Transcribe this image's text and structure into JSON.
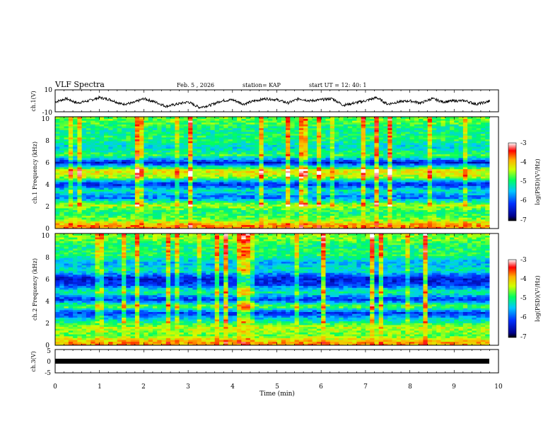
{
  "header": {
    "title": "VLF Spectra",
    "date": "Feb. 5 , 2026",
    "station": "station= KAP",
    "start": "start UT = 12: 40: 1"
  },
  "chart_data": [
    {
      "type": "line",
      "panel": "ch1-waveform",
      "ylabel": "ch.1(V)",
      "ylim": [
        -10,
        10
      ],
      "yticks": [
        "10",
        "-10"
      ],
      "xlim": [
        0,
        10
      ],
      "series": [
        {
          "name": "ch.1",
          "x": [
            0,
            0.25,
            0.5,
            0.75,
            1.0,
            1.25,
            1.5,
            1.75,
            2.0,
            2.25,
            2.5,
            2.75,
            3.0,
            3.25,
            3.5,
            3.75,
            4.0,
            4.25,
            4.5,
            4.75,
            5.0,
            5.25,
            5.5,
            5.75,
            6.0,
            6.25,
            6.5,
            6.75,
            7.0,
            7.25,
            7.5,
            7.75,
            8.0,
            8.25,
            8.5,
            8.75,
            9.0,
            9.25,
            9.5,
            9.75,
            9.8
          ],
          "values": [
            -1,
            2,
            -2,
            0,
            3,
            1,
            -3,
            -2,
            2,
            -1,
            -5,
            -3,
            -1,
            -6,
            -4,
            0,
            1,
            -3,
            0,
            2,
            1,
            -2,
            2,
            0,
            1,
            2,
            -4,
            -2,
            0,
            3,
            -3,
            -1,
            0,
            -2,
            2,
            -1,
            0,
            0,
            -3,
            -1,
            0
          ]
        }
      ]
    },
    {
      "type": "heatmap",
      "panel": "ch1-spectrogram",
      "ylabel": "ch.1 Frequency (kHz)",
      "ylim": [
        0,
        10
      ],
      "yticks": [
        "0",
        "2",
        "4",
        "6",
        "8",
        "10"
      ],
      "xlim": [
        0,
        9.8
      ],
      "colorbar": {
        "label": "log(PSD)(V²/Hz)",
        "range": [
          -7,
          -3
        ],
        "ticks": [
          "-3",
          "-4",
          "-5",
          "-6",
          "-7"
        ]
      },
      "band_levels_kHz": [
        {
          "f": 0.3,
          "level": -3.8
        },
        {
          "f": 0.8,
          "level": -4.6
        },
        {
          "f": 1.5,
          "level": -5.0
        },
        {
          "f": 2.1,
          "level": -4.4
        },
        {
          "f": 2.8,
          "level": -5.9
        },
        {
          "f": 3.4,
          "level": -5.2
        },
        {
          "f": 4.0,
          "level": -6.3
        },
        {
          "f": 4.6,
          "level": -4.5
        },
        {
          "f": 5.2,
          "level": -4.1
        },
        {
          "f": 5.9,
          "level": -6.4
        },
        {
          "f": 6.6,
          "level": -4.8
        },
        {
          "f": 7.3,
          "level": -5.4
        },
        {
          "f": 8.0,
          "level": -4.9
        },
        {
          "f": 8.8,
          "level": -5.1
        },
        {
          "f": 9.6,
          "level": -4.7
        }
      ]
    },
    {
      "type": "heatmap",
      "panel": "ch2-spectrogram",
      "ylabel": "ch.2 Frequency (kHz)",
      "ylim": [
        0,
        10
      ],
      "yticks": [
        "0",
        "2",
        "4",
        "6",
        "8",
        "10"
      ],
      "xlim": [
        0,
        9.8
      ],
      "colorbar": {
        "label": "log(PSD)(V²/Hz)",
        "range": [
          -7,
          -3
        ],
        "ticks": [
          "-3",
          "-4",
          "-5",
          "-6",
          "-7"
        ]
      },
      "band_levels_kHz": [
        {
          "f": 0.3,
          "level": -3.9
        },
        {
          "f": 0.9,
          "level": -4.7
        },
        {
          "f": 1.6,
          "level": -4.4
        },
        {
          "f": 2.3,
          "level": -5.3
        },
        {
          "f": 2.9,
          "level": -6.2
        },
        {
          "f": 3.5,
          "level": -4.6
        },
        {
          "f": 4.1,
          "level": -6.2
        },
        {
          "f": 4.8,
          "level": -5.0
        },
        {
          "f": 5.4,
          "level": -6.1
        },
        {
          "f": 6.0,
          "level": -6.4
        },
        {
          "f": 6.7,
          "level": -5.2
        },
        {
          "f": 7.4,
          "level": -5.6
        },
        {
          "f": 8.1,
          "level": -4.9
        },
        {
          "f": 8.9,
          "level": -5.0
        },
        {
          "f": 9.6,
          "level": -4.6
        }
      ]
    },
    {
      "type": "line",
      "panel": "ch3-waveform",
      "ylabel": "ch.3(V)",
      "ylim": [
        -5,
        5
      ],
      "yticks": [
        "5",
        "0",
        "-5"
      ],
      "xlim": [
        0,
        10
      ],
      "xlabel": "Time (min)",
      "xticks": [
        "0",
        "1",
        "2",
        "3",
        "4",
        "5",
        "6",
        "7",
        "8",
        "9",
        "10"
      ],
      "series": [
        {
          "name": "ch.3",
          "x": [
            0,
            9.8
          ],
          "values": [
            0,
            0
          ]
        }
      ]
    }
  ]
}
